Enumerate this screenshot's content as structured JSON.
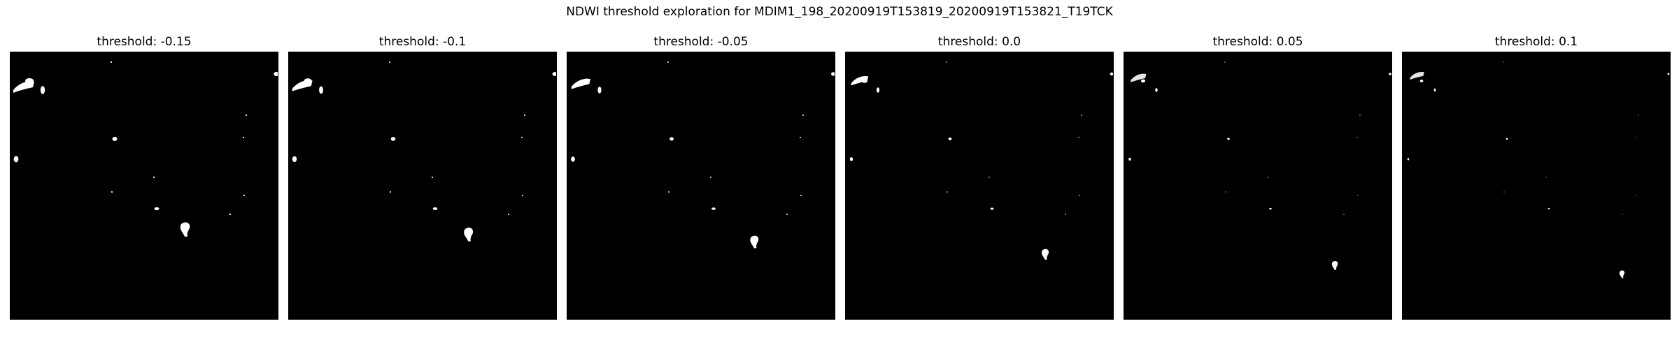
{
  "figure": {
    "title": "NDWI threshold exploration for MDIM1_198_20200919T153819_20200919T153821_T19TCK"
  },
  "panels": [
    {
      "title": "threshold: -0.15"
    },
    {
      "title": "threshold: -0.1"
    },
    {
      "title": "threshold: -0.05"
    },
    {
      "title": "threshold: 0.0"
    },
    {
      "title": "threshold: 0.05"
    },
    {
      "title": "threshold: 0.1"
    }
  ],
  "colors": {
    "background": "#000000",
    "water": "#ffffff"
  }
}
